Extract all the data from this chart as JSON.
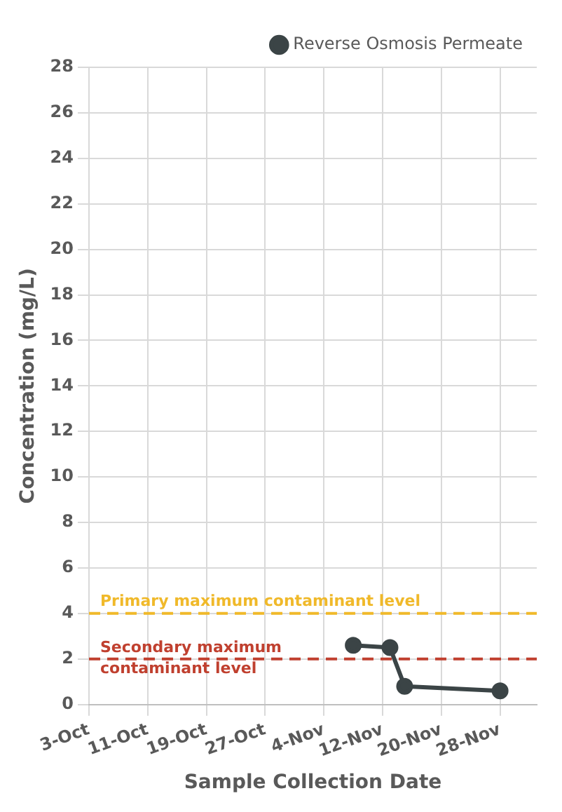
{
  "chart_data": {
    "type": "line",
    "xlabel": "Sample Collection Date",
    "ylabel": "Concentration (mg/L)",
    "x": [
      "--11-08",
      "--11-13",
      "--11-15",
      "--11-28"
    ],
    "series": [
      {
        "name": "Reverse Osmosis Permeate",
        "color": "#3b4446",
        "values": [
          2.6,
          2.5,
          0.8,
          0.6
        ]
      }
    ],
    "xlim": [
      "--10-03",
      "--12-03"
    ],
    "xticks": [
      {
        "value": "--10-03",
        "label": "3-Oct"
      },
      {
        "value": "--10-11",
        "label": "11-Oct"
      },
      {
        "value": "--10-19",
        "label": "19-Oct"
      },
      {
        "value": "--10-27",
        "label": "27-Oct"
      },
      {
        "value": "--11-04",
        "label": "4-Nov"
      },
      {
        "value": "--11-12",
        "label": "12-Nov"
      },
      {
        "value": "--11-20",
        "label": "20-Nov"
      },
      {
        "value": "--11-28",
        "label": "28-Nov"
      }
    ],
    "ylim": [
      0,
      28
    ],
    "yticks": [
      0,
      2,
      4,
      6,
      8,
      10,
      12,
      14,
      16,
      18,
      20,
      22,
      24,
      26,
      28
    ],
    "ref_lines": [
      {
        "axis": "y",
        "value": 4,
        "label": "Primary maximum contaminant level",
        "color": "#f0b92a",
        "line_style": "dashed"
      },
      {
        "axis": "y",
        "value": 2,
        "label": "Secondary maximum\ncontaminant level",
        "color": "#c0402f",
        "line_style": "dashed"
      }
    ],
    "grid": true,
    "legend": "top right",
    "marker": "circle",
    "line_style": "solid"
  }
}
